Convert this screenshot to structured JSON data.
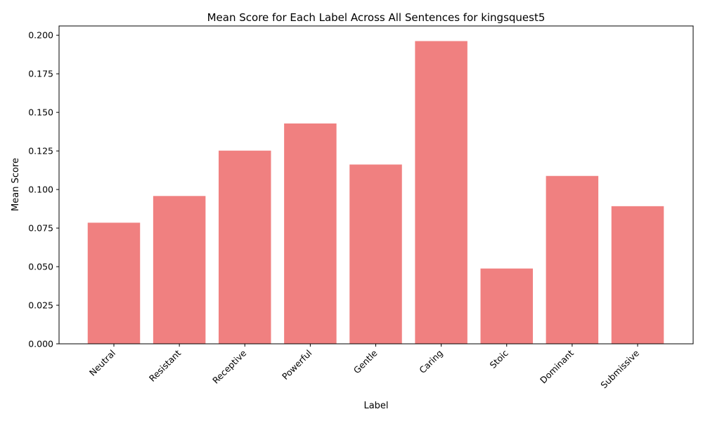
{
  "chart_data": {
    "type": "bar",
    "title": "Mean Score for Each Label Across All Sentences for kingsquest5",
    "xlabel": "Label",
    "ylabel": "Mean Score",
    "categories": [
      "Neutral",
      "Resistant",
      "Receptive",
      "Powerful",
      "Gentle",
      "Caring",
      "Stoic",
      "Dominant",
      "Submissive"
    ],
    "values": [
      0.0785,
      0.0958,
      0.1252,
      0.1428,
      0.1162,
      0.1962,
      0.0488,
      0.1088,
      0.0892
    ],
    "ylim": [
      0,
      0.206
    ],
    "yticks": [
      "0.000",
      "0.025",
      "0.050",
      "0.075",
      "0.100",
      "0.125",
      "0.150",
      "0.175",
      "0.200"
    ],
    "grid": false,
    "bar_color": "#f08080"
  }
}
